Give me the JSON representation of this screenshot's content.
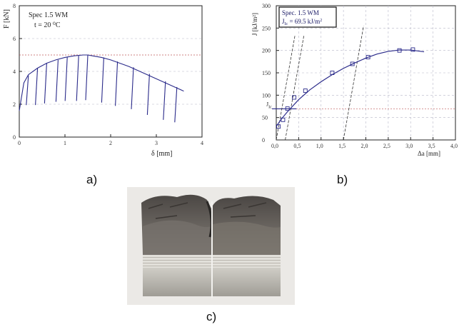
{
  "captions": {
    "a": "a)",
    "b": "b)",
    "c": "c)"
  },
  "colors": {
    "curve": "#2a2a8a",
    "guide": "#c05a5a",
    "grid": "#b8b8c8",
    "axis": "#222222",
    "specimen_dark": "#5b5752",
    "specimen_light": "#d8d6d0"
  },
  "chart_data": [
    {
      "type": "line",
      "panel": "a",
      "title": "",
      "legend": [
        "Spec 1.5 WM",
        "t = 20 ⁰C"
      ],
      "xlabel": "δ [mm]",
      "ylabel": "F [kN]",
      "xlim": [
        0,
        4
      ],
      "ylim": [
        0,
        8
      ],
      "xticks": [
        0,
        1,
        2,
        3,
        4
      ],
      "yticks": [
        0,
        2,
        4,
        6,
        8
      ],
      "grid": true,
      "reference_line_y": 5,
      "envelope": {
        "x": [
          0.0,
          0.1,
          0.2,
          0.4,
          0.6,
          0.8,
          1.0,
          1.2,
          1.4,
          1.5,
          1.6,
          1.8,
          2.0,
          2.2,
          2.4,
          2.6,
          2.8,
          3.0,
          3.2,
          3.4,
          3.6
        ],
        "y": [
          1.6,
          3.3,
          3.8,
          4.2,
          4.5,
          4.7,
          4.85,
          4.95,
          5.0,
          5.0,
          4.95,
          4.85,
          4.7,
          4.5,
          4.3,
          4.05,
          3.8,
          3.55,
          3.3,
          3.05,
          2.8
        ]
      },
      "unloadings": [
        {
          "x": 0.2,
          "y_top": 3.75,
          "y_bottom": 1.95
        },
        {
          "x": 0.4,
          "y_top": 4.2,
          "y_bottom": 1.95
        },
        {
          "x": 0.6,
          "y_top": 4.5,
          "y_bottom": 2.05
        },
        {
          "x": 0.85,
          "y_top": 4.7,
          "y_bottom": 2.15
        },
        {
          "x": 1.05,
          "y_top": 4.85,
          "y_bottom": 2.2
        },
        {
          "x": 1.3,
          "y_top": 4.95,
          "y_bottom": 2.2
        },
        {
          "x": 1.5,
          "y_top": 5.0,
          "y_bottom": 2.25
        },
        {
          "x": 1.85,
          "y_top": 4.85,
          "y_bottom": 2.1
        },
        {
          "x": 2.15,
          "y_top": 4.6,
          "y_bottom": 1.9
        },
        {
          "x": 2.5,
          "y_top": 4.25,
          "y_bottom": 1.7
        },
        {
          "x": 2.85,
          "y_top": 3.85,
          "y_bottom": 1.35
        },
        {
          "x": 3.2,
          "y_top": 3.4,
          "y_bottom": 1.05
        },
        {
          "x": 3.45,
          "y_top": 3.05,
          "y_bottom": 0.9
        }
      ]
    },
    {
      "type": "scatter",
      "panel": "b",
      "title": "",
      "legend": [
        "Spec. 1.5 WM",
        "J",
        "Ic",
        " = 69.5 kJ/m",
        "2"
      ],
      "xlabel": "Δa [mm]",
      "ylabel": "J [kJ/m²]",
      "xlim": [
        0,
        4
      ],
      "ylim": [
        0,
        300
      ],
      "xticks": [
        "0,0",
        "0,5",
        "1,0",
        "1,5",
        "2,0",
        "2,5",
        "3,0",
        "3,5",
        "4,0"
      ],
      "ytick_values": [
        0,
        50,
        100,
        150,
        200,
        250,
        300
      ],
      "grid": true,
      "jic_label": [
        "J",
        "Ic"
      ],
      "jic_value": 69.5,
      "points": {
        "x": [
          0.05,
          0.15,
          0.25,
          0.4,
          0.65,
          1.25,
          1.7,
          2.05,
          2.75,
          3.05
        ],
        "y": [
          30,
          45,
          70,
          95,
          110,
          150,
          170,
          185,
          200,
          202
        ]
      },
      "fit": {
        "x": [
          0.0,
          0.1,
          0.25,
          0.5,
          0.75,
          1.0,
          1.25,
          1.5,
          1.75,
          2.0,
          2.25,
          2.5,
          2.75,
          3.0,
          3.3
        ],
        "y": [
          30,
          45,
          63,
          90,
          112,
          130,
          146,
          160,
          172,
          183,
          192,
          198,
          201,
          201,
          197
        ]
      },
      "blunting_lines": [
        {
          "x": [
            0.0,
            0.42
          ],
          "y": [
            0,
            235
          ]
        },
        {
          "x": [
            0.2,
            0.62
          ],
          "y": [
            0,
            235
          ]
        },
        {
          "x": [
            1.5,
            1.95
          ],
          "y": [
            0,
            255
          ]
        }
      ]
    }
  ],
  "photo": {
    "subject": "fractured specimen halves"
  }
}
